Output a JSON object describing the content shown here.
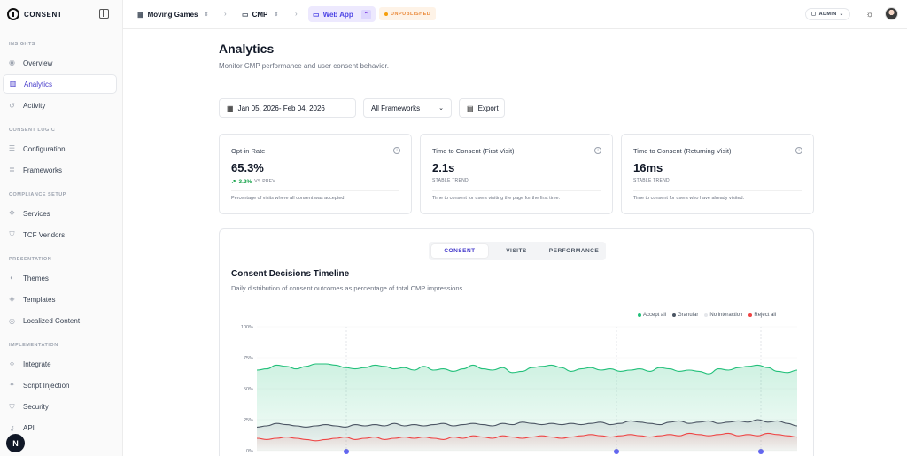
{
  "brand": {
    "name": "CONSENT"
  },
  "sidebar": {
    "sections": [
      {
        "label": "INSIGHTS",
        "items": [
          {
            "label": "Overview",
            "icon": "eye-icon"
          },
          {
            "label": "Analytics",
            "icon": "bar-chart-icon",
            "active": true
          },
          {
            "label": "Activity",
            "icon": "history-icon"
          }
        ]
      },
      {
        "label": "CONSENT LOGIC",
        "items": [
          {
            "label": "Configuration",
            "icon": "sliders-icon"
          },
          {
            "label": "Frameworks",
            "icon": "stack-icon"
          }
        ]
      },
      {
        "label": "COMPLIANCE SETUP",
        "items": [
          {
            "label": "Services",
            "icon": "puzzle-icon"
          },
          {
            "label": "TCF Vendors",
            "icon": "shield-icon"
          }
        ]
      },
      {
        "label": "PRESENTATION",
        "items": [
          {
            "label": "Themes",
            "icon": "palette-icon"
          },
          {
            "label": "Templates",
            "icon": "layers-icon"
          },
          {
            "label": "Localized Content",
            "icon": "globe-icon"
          }
        ]
      },
      {
        "label": "IMPLEMENTATION",
        "items": [
          {
            "label": "Integrate",
            "icon": "code-icon"
          },
          {
            "label": "Script Injection",
            "icon": "sparkle-icon"
          },
          {
            "label": "Security",
            "icon": "shield-check-icon"
          },
          {
            "label": "API",
            "icon": "key-icon"
          }
        ]
      }
    ],
    "user_initial": "N"
  },
  "topbar": {
    "org": "Moving Games",
    "project": "CMP",
    "app": "Web App",
    "app_shortcut": "⌃",
    "status": "UNPUBLISHED",
    "role": "ADMIN"
  },
  "page": {
    "title": "Analytics",
    "subtitle": "Monitor CMP performance and user consent behavior."
  },
  "controls": {
    "date_range": "Jan 05, 2026- Feb 04, 2026",
    "framework": "All Frameworks",
    "export": "Export"
  },
  "cards": [
    {
      "title": "Opt-in Rate",
      "value": "65.3%",
      "trend_value": "3.2%",
      "trend_label": "VS PREV",
      "description": "Percentage of visits where all consent was accepted."
    },
    {
      "title": "Time to Consent (First Visit)",
      "value": "2.1s",
      "trend_value": "",
      "trend_label": "STABLE TREND",
      "description": "Time to consent for users visiting the page for the first time."
    },
    {
      "title": "Time to Consent (Returning Visit)",
      "value": "16ms",
      "trend_value": "",
      "trend_label": "STABLE TREND",
      "description": "Time to consent for users who have already visited."
    }
  ],
  "tabs": [
    "CONSENT",
    "VISITS",
    "PERFORMANCE"
  ],
  "chart": {
    "title": "Consent Decisions Timeline",
    "subtitle": "Daily distribution of consent outcomes as percentage of total CMP impressions."
  },
  "chart_data": {
    "type": "area",
    "ylim": [
      0,
      100
    ],
    "yticks": [
      "100%",
      "75%",
      "50%",
      "25%",
      "0%"
    ],
    "series": [
      {
        "name": "Accept all",
        "color": "#22c07a",
        "values": [
          65,
          66,
          69,
          68,
          66,
          68,
          70,
          70,
          69,
          67,
          66,
          67,
          69,
          68,
          66,
          67,
          65,
          68,
          65,
          66,
          64,
          66,
          69,
          66,
          65,
          67,
          63,
          64,
          67,
          68,
          69,
          67,
          64,
          66,
          67,
          65,
          66,
          64,
          65,
          66,
          64,
          67,
          66,
          64,
          65,
          64,
          62,
          66,
          65,
          67,
          68,
          69,
          67,
          64,
          63,
          65
        ]
      },
      {
        "name": "Granular",
        "color": "#4b5563",
        "values": [
          19,
          20,
          22,
          21,
          20,
          19,
          20,
          21,
          20,
          19,
          21,
          20,
          21,
          20,
          22,
          20,
          21,
          20,
          21,
          22,
          20,
          21,
          22,
          21,
          20,
          22,
          21,
          23,
          22,
          21,
          22,
          21,
          22,
          21,
          22,
          23,
          21,
          22,
          24,
          23,
          22,
          21,
          23,
          24,
          22,
          23,
          24,
          22,
          23,
          24,
          23,
          25,
          23,
          24,
          22,
          20
        ]
      },
      {
        "name": "No interaction",
        "color": "#e5e7eb",
        "values": []
      },
      {
        "name": "Reject all",
        "color": "#ef4444",
        "values": [
          10,
          9,
          10,
          11,
          10,
          9,
          8,
          9,
          10,
          11,
          9,
          10,
          11,
          9,
          10,
          11,
          10,
          11,
          10,
          9,
          11,
          10,
          12,
          11,
          10,
          12,
          11,
          10,
          11,
          12,
          11,
          10,
          11,
          12,
          13,
          12,
          11,
          12,
          13,
          12,
          11,
          12,
          13,
          12,
          14,
          13,
          12,
          13,
          14,
          12,
          13,
          12,
          14,
          13,
          12,
          11
        ]
      }
    ]
  }
}
